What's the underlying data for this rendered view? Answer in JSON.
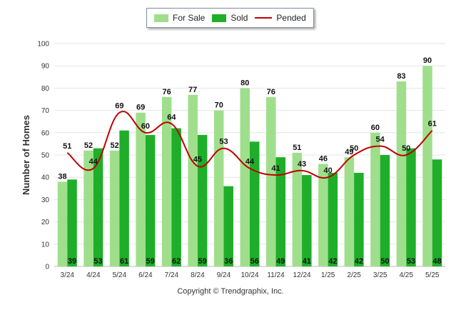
{
  "chart_data": {
    "type": "bar",
    "ylabel": "Number of Homes",
    "xlabel": "",
    "ylim": [
      0,
      100
    ],
    "yticks": [
      0,
      10,
      20,
      30,
      40,
      50,
      60,
      70,
      80,
      90,
      100
    ],
    "grid": true,
    "legend_position": "top-center",
    "categories": [
      "3/24",
      "4/24",
      "5/24",
      "6/24",
      "7/24",
      "8/24",
      "9/24",
      "10/24",
      "11/24",
      "12/24",
      "1/25",
      "2/25",
      "3/25",
      "4/25",
      "5/25"
    ],
    "series": [
      {
        "name": "For Sale",
        "kind": "bar",
        "color": "#9fdf8c",
        "values": [
          38,
          52,
          52,
          69,
          76,
          77,
          70,
          80,
          76,
          51,
          46,
          49,
          60,
          83,
          90
        ]
      },
      {
        "name": "Sold",
        "kind": "bar",
        "color": "#1fae2a",
        "values": [
          39,
          53,
          61,
          59,
          62,
          59,
          36,
          56,
          49,
          41,
          42,
          42,
          50,
          53,
          48
        ]
      },
      {
        "name": "Pended",
        "kind": "line",
        "color": "#c00000",
        "values": [
          51,
          44,
          69,
          60,
          64,
          45,
          53,
          44,
          41,
          43,
          40,
          50,
          54,
          50,
          61
        ]
      }
    ]
  },
  "copyright": "Copyright © Trendgraphix, Inc."
}
